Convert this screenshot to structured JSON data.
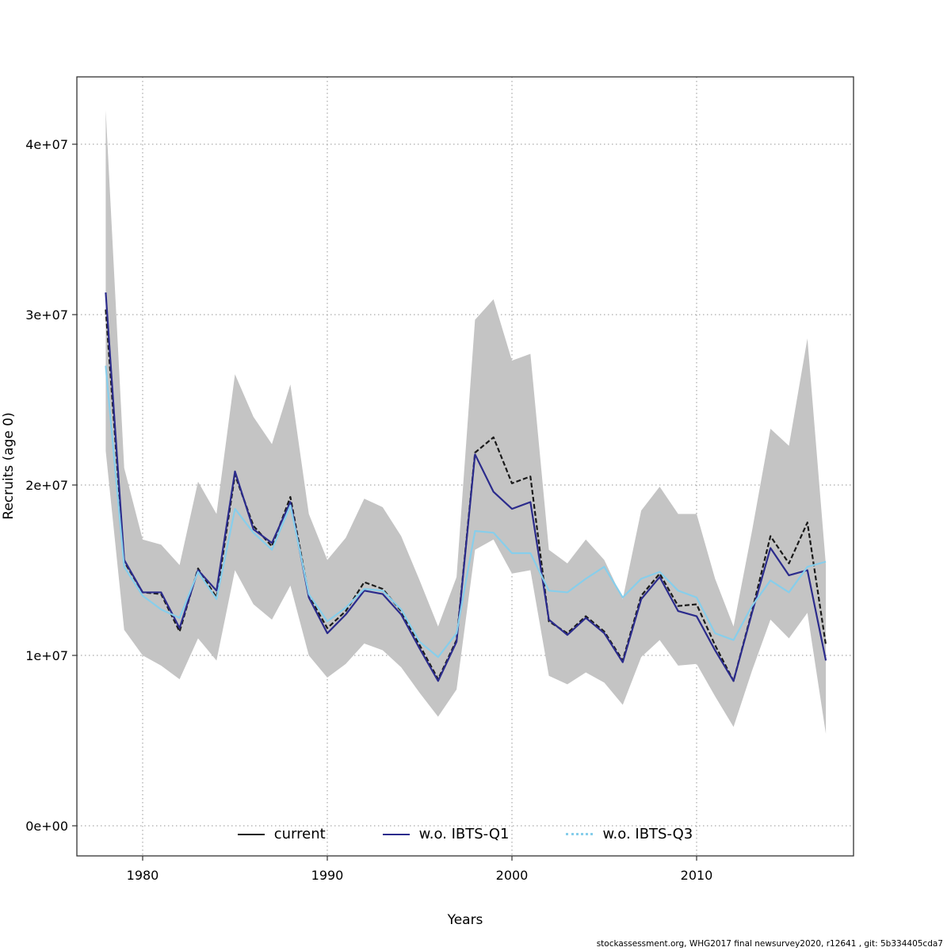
{
  "footer": {
    "text": "stockassessment.org, WHG2017 final newsurvey2020, r12641 , git: 5b334405cda7"
  },
  "chart_data": {
    "type": "line",
    "title": "",
    "xlabel": "Years",
    "ylabel": "Recruits (age 0)",
    "x_ticks": [
      1980,
      1990,
      2000,
      2010
    ],
    "x_tick_labels": [
      "1980",
      "1990",
      "2000",
      "2010"
    ],
    "y_ticks": [
      0,
      10000000,
      20000000,
      30000000,
      40000000
    ],
    "y_tick_labels": [
      "0e+00",
      "1e+07",
      "2e+07",
      "3e+07",
      "4e+07"
    ],
    "xlim": [
      1976.4,
      2018.6
    ],
    "ylim": [
      0,
      44000000
    ],
    "grid": true,
    "legend_position": "bottom-center-inside",
    "x": [
      1978,
      1979,
      1980,
      1981,
      1982,
      1983,
      1984,
      1985,
      1986,
      1987,
      1988,
      1989,
      1990,
      1991,
      1992,
      1993,
      1994,
      1995,
      1996,
      1997,
      1998,
      1999,
      2000,
      2001,
      2002,
      2003,
      2004,
      2005,
      2006,
      2007,
      2008,
      2009,
      2010,
      2011,
      2012,
      2013,
      2014,
      2015,
      2016,
      2017
    ],
    "series": [
      {
        "name": "current",
        "color": "#1a1a1a",
        "style": "dashed",
        "legend_style": "solid",
        "values": [
          30300000,
          15500000,
          13700000,
          13600000,
          11400000,
          15100000,
          13400000,
          20600000,
          17600000,
          16400000,
          19300000,
          13500000,
          11600000,
          12600000,
          14300000,
          13900000,
          12600000,
          10600000,
          8600000,
          10900000,
          21900000,
          22800000,
          20100000,
          20500000,
          12000000,
          11300000,
          12300000,
          11400000,
          9700000,
          13500000,
          14800000,
          12900000,
          13000000,
          10600000,
          8500000,
          12600000,
          17000000,
          15400000,
          17800000,
          10600000
        ]
      },
      {
        "name": "w.o. IBTS-Q1",
        "color": "#2b2b8c",
        "style": "solid",
        "legend_style": "solid",
        "values": [
          31300000,
          15600000,
          13700000,
          13700000,
          11600000,
          15000000,
          13800000,
          20800000,
          17400000,
          16600000,
          19000000,
          13400000,
          11300000,
          12400000,
          13800000,
          13600000,
          12400000,
          10400000,
          8500000,
          10800000,
          21800000,
          19600000,
          18600000,
          19000000,
          12100000,
          11200000,
          12200000,
          11300000,
          9600000,
          13300000,
          14600000,
          12600000,
          12300000,
          10300000,
          8500000,
          12500000,
          16300000,
          14700000,
          15000000,
          9700000
        ]
      },
      {
        "name": "w.o. IBTS-Q3",
        "color": "#87ceeb",
        "style": "solid",
        "legend_style": "dotted",
        "values": [
          27000000,
          15200000,
          13500000,
          12700000,
          12200000,
          14900000,
          13300000,
          18600000,
          17200000,
          16200000,
          18800000,
          13600000,
          12000000,
          12800000,
          13900000,
          13800000,
          12700000,
          10800000,
          9900000,
          11300000,
          17300000,
          17200000,
          16000000,
          16000000,
          13800000,
          13700000,
          14500000,
          15200000,
          13400000,
          14500000,
          14900000,
          13800000,
          13400000,
          11300000,
          10900000,
          12900000,
          14400000,
          13700000,
          15200000,
          15500000
        ]
      }
    ],
    "band": {
      "label": "confidence-band",
      "series": "current",
      "color": "#c4c4c4",
      "lower": [
        22000000,
        11500000,
        10000000,
        9400000,
        8600000,
        11000000,
        9700000,
        15000000,
        13000000,
        12100000,
        14100000,
        10000000,
        8700000,
        9500000,
        10700000,
        10300000,
        9300000,
        7800000,
        6400000,
        8000000,
        16200000,
        16800000,
        14800000,
        15000000,
        8800000,
        8300000,
        9000000,
        8400000,
        7100000,
        9900000,
        10900000,
        9400000,
        9500000,
        7600000,
        5800000,
        9100000,
        12100000,
        11000000,
        12500000,
        5400000
      ],
      "upper": [
        42000000,
        21000000,
        16800000,
        16500000,
        15300000,
        20200000,
        18300000,
        26500000,
        24000000,
        22400000,
        25900000,
        18300000,
        15600000,
        16900000,
        19200000,
        18700000,
        17000000,
        14400000,
        11700000,
        14600000,
        29700000,
        30900000,
        27300000,
        27700000,
        16200000,
        15400000,
        16800000,
        15600000,
        13300000,
        18500000,
        19900000,
        18300000,
        18300000,
        14500000,
        11700000,
        17300000,
        23300000,
        22300000,
        28600000,
        15300000
      ]
    }
  }
}
